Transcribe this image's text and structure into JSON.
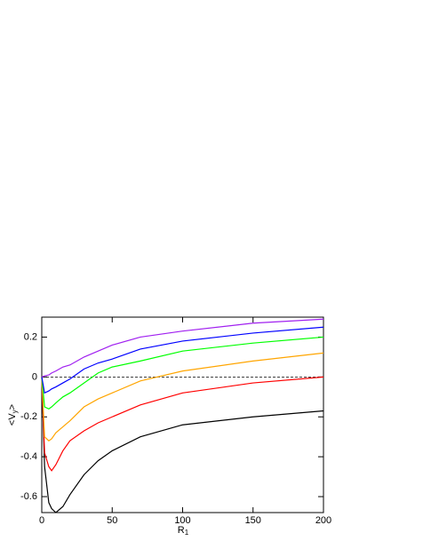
{
  "chart_data": {
    "type": "line",
    "x": [
      0,
      2,
      5,
      7,
      10,
      15,
      20,
      30,
      40,
      50,
      70,
      100,
      150,
      200
    ],
    "series": [
      {
        "color": "#000000",
        "values": [
          0,
          -0.45,
          -0.63,
          -0.66,
          -0.68,
          -0.65,
          -0.59,
          -0.49,
          -0.42,
          -0.37,
          -0.3,
          -0.24,
          -0.2,
          -0.17
        ]
      },
      {
        "color": "#ff0000",
        "values": [
          0,
          -0.38,
          -0.45,
          -0.47,
          -0.44,
          -0.37,
          -0.32,
          -0.27,
          -0.23,
          -0.2,
          -0.14,
          -0.08,
          -0.03,
          0
        ]
      },
      {
        "color": "#ffa500",
        "values": [
          0,
          -0.3,
          -0.32,
          -0.31,
          -0.28,
          -0.25,
          -0.22,
          -0.15,
          -0.11,
          -0.08,
          -0.02,
          0.03,
          0.08,
          0.12
        ]
      },
      {
        "color": "#00ff00",
        "values": [
          0,
          -0.15,
          -0.16,
          -0.15,
          -0.13,
          -0.1,
          -0.08,
          -0.03,
          0.02,
          0.05,
          0.08,
          0.13,
          0.17,
          0.2
        ]
      },
      {
        "color": "#0000ff",
        "values": [
          0,
          -0.08,
          -0.07,
          -0.06,
          -0.05,
          -0.03,
          -0.01,
          0.04,
          0.07,
          0.09,
          0.14,
          0.18,
          0.22,
          0.25
        ]
      },
      {
        "color": "#a020f0",
        "values": [
          0,
          0.005,
          0.01,
          0.02,
          0.03,
          0.05,
          0.06,
          0.1,
          0.13,
          0.16,
          0.2,
          0.23,
          0.27,
          0.29
        ]
      }
    ],
    "xlim": [
      0,
      200
    ],
    "xticks": [
      0,
      50,
      100,
      150,
      200
    ],
    "ylim": [
      -0.68,
      0.3
    ],
    "yticks": [
      -0.6,
      -0.4,
      -0.2,
      0,
      0.2
    ],
    "hline": 0,
    "x_label": {
      "base": "R",
      "sub": "1"
    },
    "y_label": {
      "open": "<V",
      "sub": "y",
      "close": ">"
    }
  }
}
